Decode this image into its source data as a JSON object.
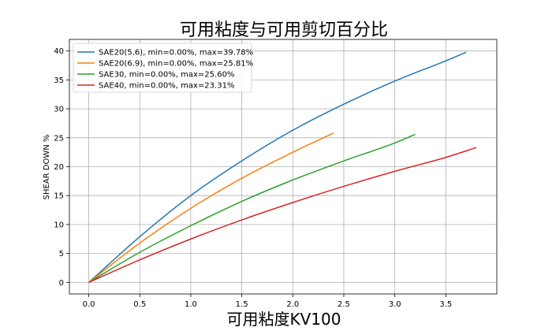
{
  "chart_data": {
    "type": "line",
    "title": "可用粘度与可用剪切百分比",
    "xlabel": "可用粘度KV100",
    "ylabel": "SHEAR DOWN %",
    "xlim": [
      -0.19,
      4.0
    ],
    "ylim": [
      -2.0,
      42.0
    ],
    "xticks": [
      0.0,
      0.5,
      1.0,
      1.5,
      2.0,
      2.5,
      3.0,
      3.5
    ],
    "xtick_labels": [
      "0.0",
      "0.5",
      "1.0",
      "1.5",
      "2.0",
      "2.5",
      "3.0",
      "3.5"
    ],
    "yticks": [
      0,
      5,
      10,
      15,
      20,
      25,
      30,
      35,
      40
    ],
    "ytick_labels": [
      "0",
      "5",
      "10",
      "15",
      "20",
      "25",
      "30",
      "35",
      "40"
    ],
    "grid": true,
    "legend_position": "top-left",
    "series": [
      {
        "name": "SAE20(5.6), min=0.00%, max=39.78%",
        "color": "#1f77b4",
        "x": [
          0,
          0.5,
          1.0,
          1.5,
          2.0,
          2.5,
          3.0,
          3.5,
          3.7
        ],
        "y": [
          0,
          7.9,
          15.0,
          21.0,
          26.3,
          30.8,
          34.8,
          38.3,
          39.78
        ]
      },
      {
        "name": "SAE20(6.9), min=0.00%, max=25.81%",
        "color": "#ff7f0e",
        "x": [
          0,
          0.5,
          1.0,
          1.5,
          2.0,
          2.4
        ],
        "y": [
          0,
          6.8,
          12.8,
          18.0,
          22.5,
          25.81
        ]
      },
      {
        "name": "SAE30, min=0.00%, max=25.60%",
        "color": "#2ca02c",
        "x": [
          0,
          0.5,
          1.0,
          1.5,
          2.0,
          2.5,
          3.0,
          3.2
        ],
        "y": [
          0,
          5.2,
          9.8,
          14.0,
          17.7,
          21.0,
          24.1,
          25.6
        ]
      },
      {
        "name": "SAE40, min=0.00%, max=23.31%",
        "color": "#d62728",
        "x": [
          0,
          0.5,
          1.0,
          1.5,
          2.0,
          2.5,
          3.0,
          3.5,
          3.8
        ],
        "y": [
          0,
          3.9,
          7.5,
          10.8,
          13.8,
          16.6,
          19.2,
          21.6,
          23.31
        ]
      }
    ]
  }
}
